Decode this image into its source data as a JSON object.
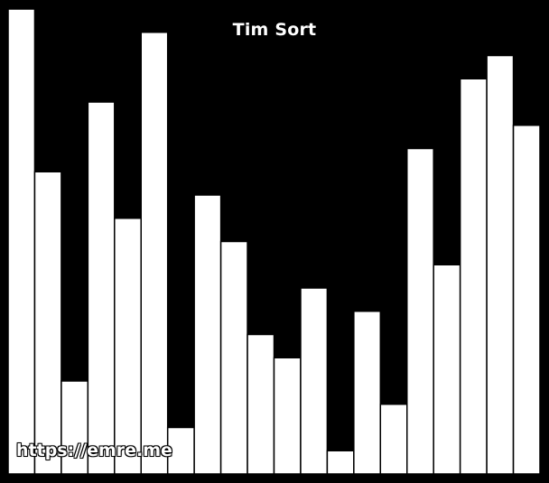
{
  "title": "Tim Sort",
  "watermark": "https://emre.me",
  "colors": {
    "background": "#000000",
    "bar_fill": "#ffffff",
    "bar_stroke": "#000000"
  },
  "chart_data": {
    "type": "bar",
    "values": [
      20,
      13,
      4,
      16,
      11,
      19,
      2,
      12,
      10,
      6,
      5,
      8,
      1,
      7,
      3,
      14,
      9,
      17,
      18,
      15
    ],
    "ylim": [
      0,
      20
    ],
    "grid": false,
    "legend": false
  }
}
